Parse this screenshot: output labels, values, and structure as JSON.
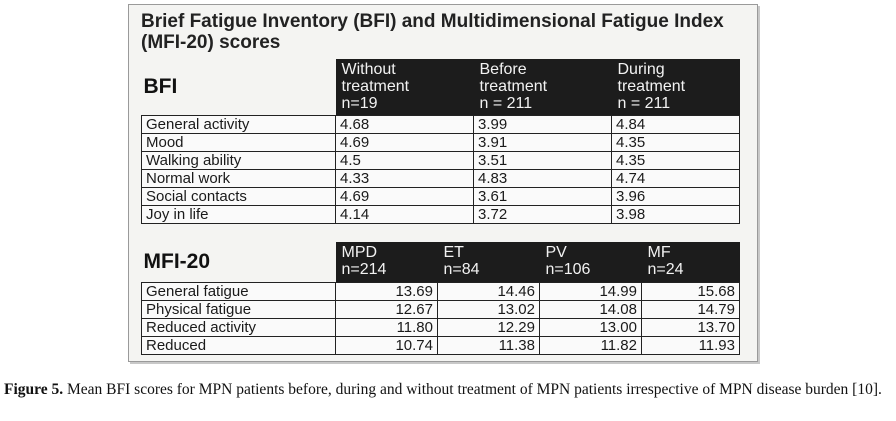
{
  "figure": {
    "title": "Brief Fatigue Inventory (BFI) and Multidimensional Fatigue Index (MFI-20) scores"
  },
  "bfi": {
    "section_label": "BFI",
    "columns": [
      {
        "line1": "Without",
        "line2": "treatment",
        "line3": "n=19"
      },
      {
        "line1": "Before",
        "line2": "treatment",
        "line3": "n = 211"
      },
      {
        "line1": "During",
        "line2": "treatment",
        "line3": "n = 211"
      }
    ],
    "rows": [
      {
        "label": "General activity",
        "values": [
          "4.68",
          "3.99",
          "4.84"
        ]
      },
      {
        "label": "Mood",
        "values": [
          "4.69",
          "3.91",
          "4.35"
        ]
      },
      {
        "label": "Walking ability",
        "values": [
          "4.5",
          "3.51",
          "4.35"
        ]
      },
      {
        "label": "Normal work",
        "values": [
          "4.33",
          "4.83",
          "4.74"
        ]
      },
      {
        "label": "Social contacts",
        "values": [
          "4.69",
          "3.61",
          "3.96"
        ]
      },
      {
        "label": "Joy in life",
        "values": [
          "4.14",
          "3.72",
          "3.98"
        ]
      }
    ]
  },
  "mfi": {
    "section_label": "MFI-20",
    "columns": [
      {
        "line1": "MPD",
        "line2": "n=214"
      },
      {
        "line1": "ET",
        "line2": "n=84"
      },
      {
        "line1": "PV",
        "line2": "n=106"
      },
      {
        "line1": "MF",
        "line2": "n=24"
      }
    ],
    "rows": [
      {
        "label": "General fatigue",
        "values": [
          "13.69",
          "14.46",
          "14.99",
          "15.68"
        ]
      },
      {
        "label": "Physical fatigue",
        "values": [
          "12.67",
          "13.02",
          "14.08",
          "14.79"
        ]
      },
      {
        "label": "Reduced activity",
        "values": [
          "11.80",
          "12.29",
          "13.00",
          "13.70"
        ]
      },
      {
        "label": "Reduced",
        "values": [
          "10.74",
          "11.38",
          "11.82",
          "11.93"
        ]
      }
    ]
  },
  "caption": {
    "label": "Figure 5.",
    "text": " Mean BFI scores for MPN patients before, during and without treatment of MPN patients irrespective of MPN disease burden [10]."
  }
}
